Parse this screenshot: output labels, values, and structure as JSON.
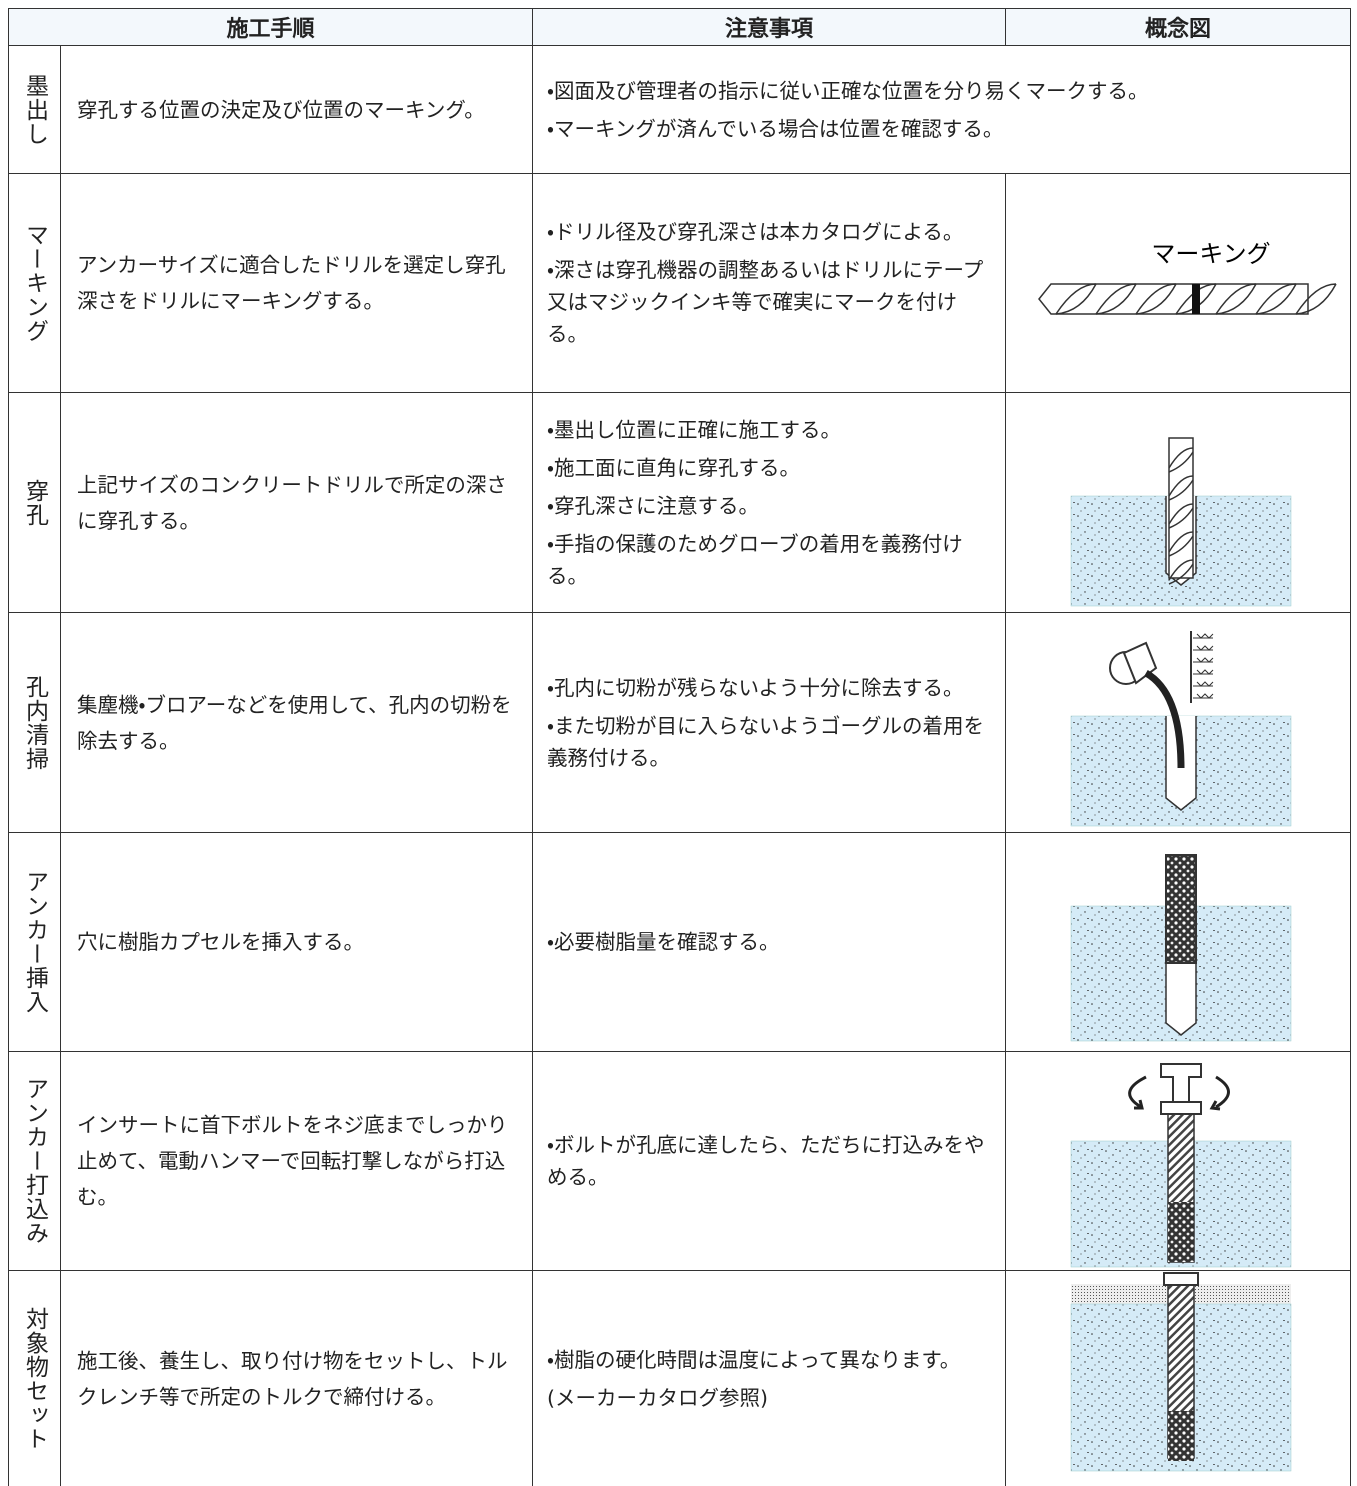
{
  "header": {
    "columns": [
      "施工手順",
      "注意事項",
      "概念図"
    ]
  },
  "rows": [
    {
      "step": "墨出し",
      "procedure": "穿孔する位置の決定及び位置のマーキング。",
      "notes": [
        "・図面及び管理者の指示に従い正確な位置を分り易くマークする。",
        "・マーキングが済んでいる場合は位置を確認する。"
      ]
    },
    {
      "step": "マーキング",
      "procedure": "アンカーサイズに適合したドリルを選定し穿孔深さをドリルにマーキングする。",
      "notes": [
        "・ドリル径及び穿孔深さは本カタログによる。",
        "・深さは穿孔機器の調整あるいはドリルにテープ又はマジックインキ等で確実にマークを付ける。"
      ],
      "diagram_label": "マーキング"
    },
    {
      "step": "穿孔",
      "procedure": "上記サイズのコンクリートドリルで所定の深さに穿孔する。",
      "notes": [
        "・墨出し位置に正確に施工する。",
        "・施工面に直角に穿孔する。",
        "・穿孔深さに注意する。",
        "・手指の保護のためグローブの着用を義務付ける。"
      ]
    },
    {
      "step": "孔内清掃",
      "procedure": "集塵機・ブロアーなどを使用して、孔内の切粉を除去する。",
      "notes": [
        "・孔内に切粉が残らないよう十分に除去する。",
        "・また切粉が目に入らないようゴーグルの着用を義務付ける。"
      ]
    },
    {
      "step": "アンカー挿入",
      "procedure": "穴に樹脂カプセルを挿入する。",
      "notes": [
        "・必要樹脂量を確認する。"
      ]
    },
    {
      "step": "アンカー打込み",
      "procedure": "インサートに首下ボルトをネジ底までしっかり止めて、電動ハンマーで回転打撃しながら打込む。",
      "notes": [
        "・ボルトが孔底に達したら、ただちに打込みをやめる。"
      ]
    },
    {
      "step": "対象物セット",
      "procedure": "施工後、養生し、取り付け物をセットし、トルクレンチ等で所定のトルクで締付ける。",
      "notes": [
        "・樹脂の硬化時間は温度によって異なります。",
        "(メーカーカタログ参照)"
      ]
    }
  ]
}
